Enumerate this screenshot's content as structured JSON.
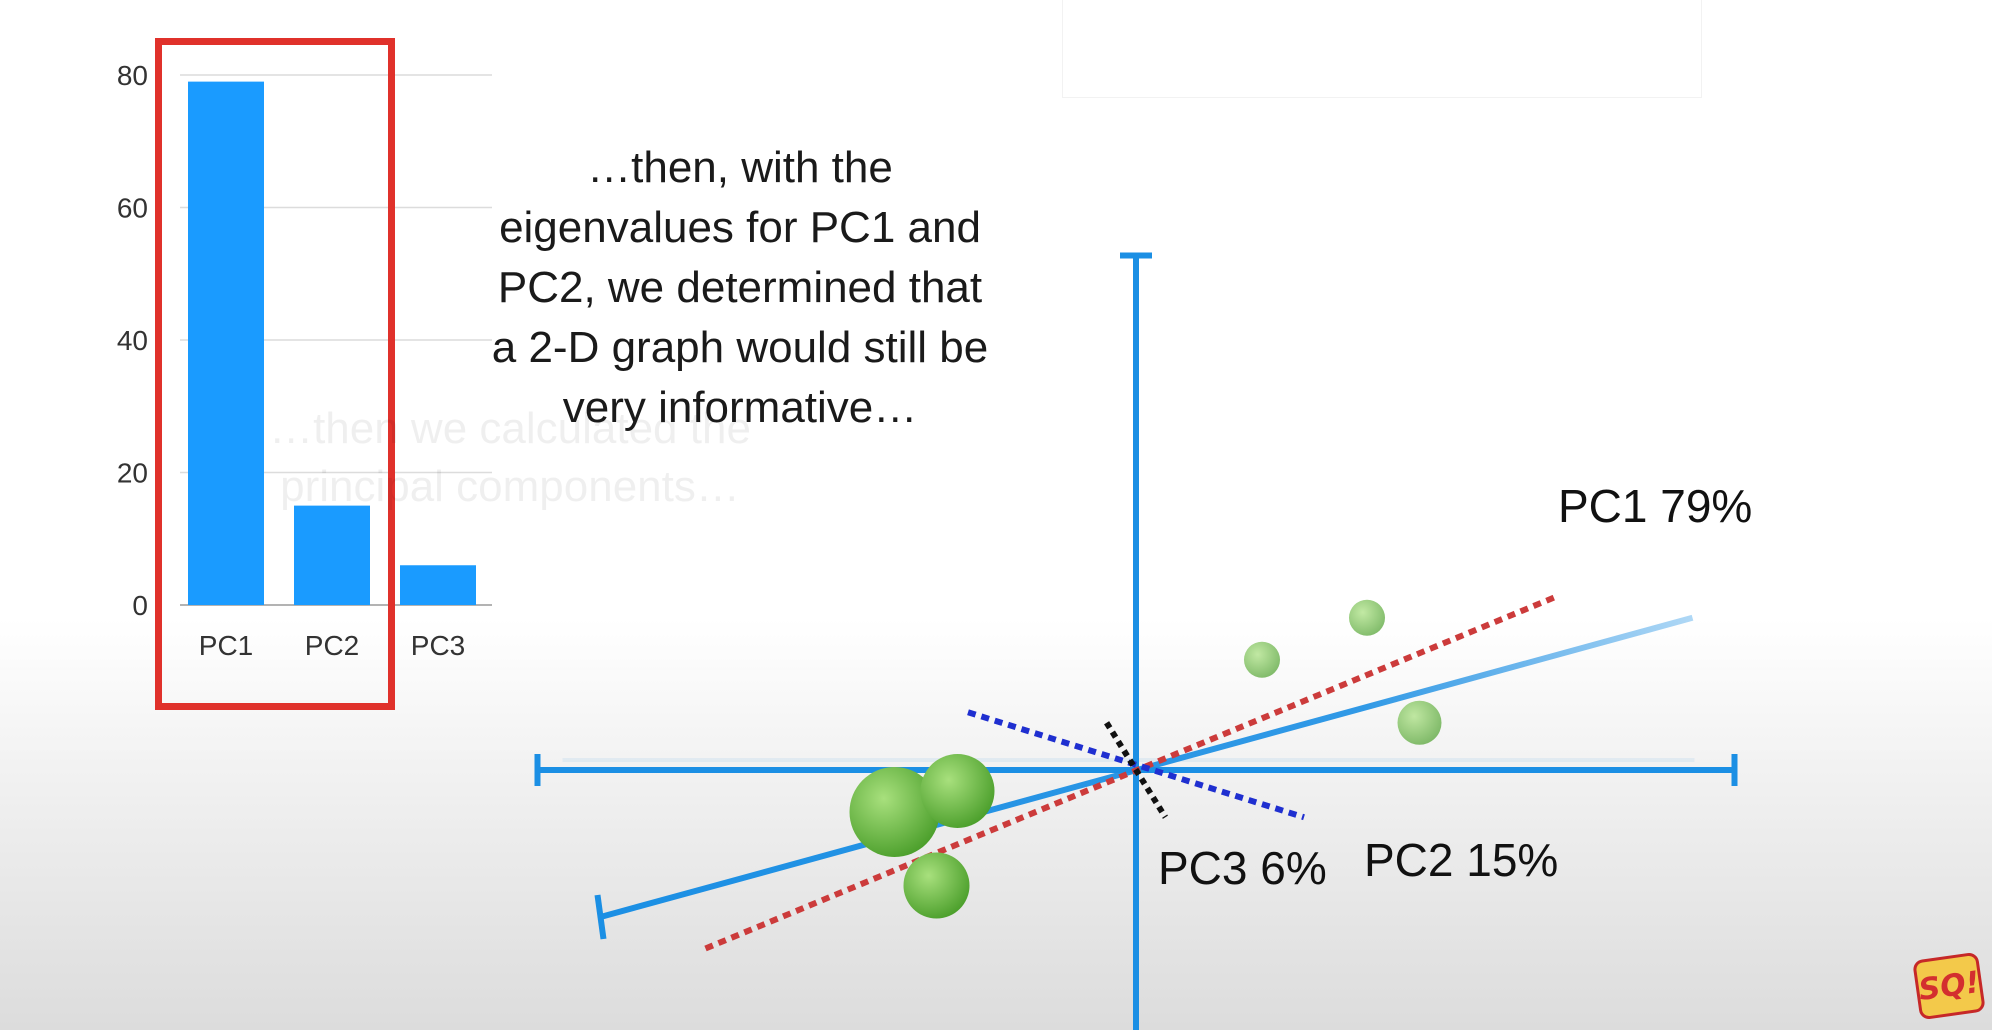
{
  "caption": {
    "lines": [
      "…then, with the",
      "eigenvalues for PC1 and",
      "PC2, we determined that",
      "a 2-D graph would still be",
      "very informative…"
    ],
    "ghost_lines": [
      "…then we calculated the",
      "principal components…"
    ]
  },
  "logo": {
    "text": "SQ!"
  },
  "colors": {
    "bar": "#1a9bff",
    "highlight": "#e0312b",
    "axis": "#1b8fe4",
    "pc1_line": "#cc3b3b",
    "pc2_line": "#1f2fd0",
    "pc3_line": "#111111",
    "point": "#6bbd3f"
  },
  "chart_data": [
    {
      "type": "bar",
      "categories": [
        "PC1",
        "PC2",
        "PC3"
      ],
      "values": [
        79,
        15,
        6
      ],
      "ylim": [
        0,
        80
      ],
      "yticks": [
        0,
        20,
        40,
        60,
        80
      ],
      "grid": true
    },
    {
      "type": "scatter",
      "points": [
        {
          "x": -2.3,
          "y": -0.4
        },
        {
          "x": -1.7,
          "y": -0.2
        },
        {
          "x": -1.9,
          "y": -1.1
        },
        {
          "x": 1.2,
          "y": 1.05
        },
        {
          "x": 2.2,
          "y": 1.45
        },
        {
          "x": 2.7,
          "y": 0.45
        }
      ],
      "xlim": [
        -5.7,
        5.7
      ],
      "ylim": [
        -4.1,
        4.9
      ],
      "component_labels": [
        {
          "name": "PC1",
          "percent": "79%",
          "text": "PC1 79%"
        },
        {
          "name": "PC2",
          "percent": "15%",
          "text": "PC2 15%"
        },
        {
          "name": "PC3",
          "percent": "6%",
          "text": "PC3 6%"
        }
      ]
    }
  ]
}
